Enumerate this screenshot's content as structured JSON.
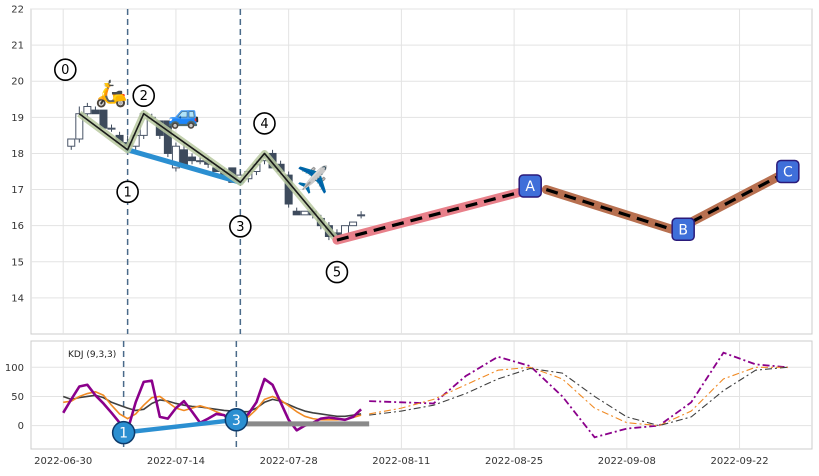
{
  "chart_data": [
    {
      "panel": "price",
      "type": "candlestick",
      "title": "",
      "xlabel": "",
      "ylabel": "",
      "ylim": [
        13,
        22
      ],
      "yticks": [
        14,
        15,
        16,
        17,
        18,
        19,
        20,
        21,
        22
      ],
      "grid": true,
      "candles": [
        {
          "date": "2022-07-01",
          "open": 18.2,
          "high": 18.4,
          "low": 18.1,
          "close": 18.4
        },
        {
          "date": "2022-07-02",
          "open": 18.4,
          "high": 19.3,
          "low": 18.3,
          "close": 19.1
        },
        {
          "date": "2022-07-03",
          "open": 19.1,
          "high": 19.4,
          "low": 19.0,
          "close": 19.3
        },
        {
          "date": "2022-07-04",
          "open": 19.2,
          "high": 19.3,
          "low": 19.1,
          "close": 19.1
        },
        {
          "date": "2022-07-05",
          "open": 19.2,
          "high": 19.2,
          "low": 18.7,
          "close": 18.7
        },
        {
          "date": "2022-07-06",
          "open": 18.7,
          "high": 18.8,
          "low": 18.6,
          "close": 18.7
        },
        {
          "date": "2022-07-07",
          "open": 18.5,
          "high": 18.6,
          "low": 18.3,
          "close": 18.3
        },
        {
          "date": "2022-07-08",
          "open": 18.3,
          "high": 18.5,
          "low": 18.0,
          "close": 18.2
        },
        {
          "date": "2022-07-09",
          "open": 18.2,
          "high": 18.6,
          "low": 18.1,
          "close": 18.5
        },
        {
          "date": "2022-07-10",
          "open": 18.5,
          "high": 19.2,
          "low": 18.4,
          "close": 19.1
        },
        {
          "date": "2022-07-11",
          "open": 19.0,
          "high": 19.1,
          "low": 18.9,
          "close": 19.0
        },
        {
          "date": "2022-07-12",
          "open": 18.9,
          "high": 18.9,
          "low": 18.4,
          "close": 18.5
        },
        {
          "date": "2022-07-13",
          "open": 18.9,
          "high": 18.9,
          "low": 17.9,
          "close": 18.0
        },
        {
          "date": "2022-07-14",
          "open": 17.6,
          "high": 18.3,
          "low": 17.5,
          "close": 18.2
        },
        {
          "date": "2022-07-15",
          "open": 18.1,
          "high": 18.3,
          "low": 17.6,
          "close": 17.7
        },
        {
          "date": "2022-07-16",
          "open": 17.9,
          "high": 18.0,
          "low": 17.7,
          "close": 17.8
        },
        {
          "date": "2022-07-17",
          "open": 17.8,
          "high": 17.9,
          "low": 17.7,
          "close": 17.8
        },
        {
          "date": "2022-07-18",
          "open": 17.8,
          "high": 17.9,
          "low": 17.6,
          "close": 17.7
        },
        {
          "date": "2022-07-19",
          "open": 17.6,
          "high": 17.7,
          "low": 17.5,
          "close": 17.5
        },
        {
          "date": "2022-07-20",
          "open": 17.5,
          "high": 17.6,
          "low": 17.3,
          "close": 17.4
        },
        {
          "date": "2022-07-21",
          "open": 17.6,
          "high": 17.6,
          "low": 17.2,
          "close": 17.2
        },
        {
          "date": "2022-07-22",
          "open": 17.2,
          "high": 17.5,
          "low": 17.1,
          "close": 17.4
        },
        {
          "date": "2022-07-23",
          "open": 17.3,
          "high": 17.5,
          "low": 17.2,
          "close": 17.5
        },
        {
          "date": "2022-07-24",
          "open": 17.5,
          "high": 17.8,
          "low": 17.4,
          "close": 17.7
        },
        {
          "date": "2022-07-25",
          "open": 17.8,
          "high": 18.0,
          "low": 17.7,
          "close": 17.9
        },
        {
          "date": "2022-07-26",
          "open": 18.0,
          "high": 18.1,
          "low": 17.6,
          "close": 17.6
        },
        {
          "date": "2022-07-27",
          "open": 17.7,
          "high": 17.8,
          "low": 17.4,
          "close": 17.5
        },
        {
          "date": "2022-07-28",
          "open": 17.4,
          "high": 17.5,
          "low": 16.5,
          "close": 16.6
        },
        {
          "date": "2022-07-29",
          "open": 16.4,
          "high": 16.5,
          "low": 16.3,
          "close": 16.3
        },
        {
          "date": "2022-07-30",
          "open": 16.3,
          "high": 16.4,
          "low": 16.3,
          "close": 16.4
        },
        {
          "date": "2022-07-31",
          "open": 16.4,
          "high": 16.5,
          "low": 16.2,
          "close": 16.3
        },
        {
          "date": "2022-08-01",
          "open": 16.2,
          "high": 16.3,
          "low": 15.9,
          "close": 16.0
        },
        {
          "date": "2022-08-02",
          "open": 16.0,
          "high": 16.1,
          "low": 15.6,
          "close": 15.7
        },
        {
          "date": "2022-08-03",
          "open": 15.8,
          "high": 15.9,
          "low": 15.6,
          "close": 15.7
        },
        {
          "date": "2022-08-04",
          "open": 15.7,
          "high": 16.0,
          "low": 15.7,
          "close": 16.0
        },
        {
          "date": "2022-08-05",
          "open": 16.0,
          "high": 16.1,
          "low": 16.0,
          "close": 16.1
        },
        {
          "date": "2022-08-06",
          "open": 16.3,
          "high": 16.4,
          "low": 16.2,
          "close": 16.3
        }
      ],
      "wave_points": [
        {
          "label": "0",
          "date": "2022-07-02",
          "value": 19.1
        },
        {
          "label": "1",
          "date": "2022-07-08",
          "value": 18.1
        },
        {
          "label": "2",
          "date": "2022-07-10",
          "value": 19.1
        },
        {
          "label": "3",
          "date": "2022-07-22",
          "value": 17.2
        },
        {
          "label": "4",
          "date": "2022-07-25",
          "value": 18.0
        },
        {
          "label": "5",
          "date": "2022-08-03",
          "value": 15.6
        }
      ],
      "trend_line": {
        "from": {
          "date": "2022-07-08",
          "value": 18.1
        },
        "to": {
          "date": "2022-07-22",
          "value": 17.2
        }
      },
      "projection_points": [
        {
          "label": "A",
          "date": "2022-08-27",
          "value": 17.1
        },
        {
          "label": "B",
          "date": "2022-09-15",
          "value": 15.9
        },
        {
          "label": "C",
          "date": "2022-09-28",
          "value": 17.5
        }
      ],
      "projection_segments": [
        {
          "from": {
            "date": "2022-08-03",
            "value": 15.6
          },
          "to": {
            "date": "2022-08-27",
            "value": 17.0
          },
          "color": "#e8808a"
        },
        {
          "from": {
            "date": "2022-08-29",
            "value": 17.0
          },
          "to": {
            "date": "2022-09-15",
            "value": 15.8
          },
          "color": "#b87050"
        },
        {
          "from": {
            "date": "2022-09-16",
            "value": 16.1
          },
          "to": {
            "date": "2022-09-28",
            "value": 17.5
          },
          "color": "#b87050"
        }
      ],
      "markers": [
        {
          "emoji": "🛵",
          "date": "2022-07-06",
          "value": 19.7
        },
        {
          "emoji": "🚙",
          "date": "2022-07-15",
          "value": 19.1
        },
        {
          "emoji": "✈️",
          "date": "2022-07-31",
          "value": 17.3
        }
      ],
      "vlines": [
        "2022-07-08",
        "2022-07-22"
      ]
    },
    {
      "panel": "indicator",
      "type": "line",
      "label": "KDJ (9,3,3)",
      "ylim": [
        -40,
        145
      ],
      "yticks": [
        0,
        50,
        100
      ],
      "grid": true,
      "x_dates": [
        "2022-06-30",
        "2022-07-01",
        "2022-07-02",
        "2022-07-03",
        "2022-07-04",
        "2022-07-05",
        "2022-07-06",
        "2022-07-07",
        "2022-07-08",
        "2022-07-09",
        "2022-07-10",
        "2022-07-11",
        "2022-07-12",
        "2022-07-13",
        "2022-07-14",
        "2022-07-15",
        "2022-07-16",
        "2022-07-17",
        "2022-07-18",
        "2022-07-19",
        "2022-07-20",
        "2022-07-21",
        "2022-07-22",
        "2022-07-23",
        "2022-07-24",
        "2022-07-25",
        "2022-07-26",
        "2022-07-27",
        "2022-07-28",
        "2022-07-29",
        "2022-07-30",
        "2022-07-31",
        "2022-08-01",
        "2022-08-02",
        "2022-08-03",
        "2022-08-04",
        "2022-08-05",
        "2022-08-06"
      ],
      "series": [
        {
          "color": "#404040",
          "values": [
            50,
            45,
            48,
            50,
            52,
            48,
            40,
            35,
            30,
            26,
            28,
            38,
            44,
            42,
            38,
            35,
            33,
            32,
            30,
            28,
            26,
            25,
            24,
            24,
            30,
            40,
            45,
            42,
            36,
            30,
            25,
            22,
            20,
            18,
            16,
            16,
            18,
            20
          ]
        },
        {
          "color": "#f08a24",
          "values": [
            40,
            42,
            50,
            55,
            58,
            52,
            35,
            20,
            12,
            20,
            35,
            48,
            50,
            40,
            30,
            26,
            30,
            34,
            30,
            24,
            18,
            15,
            14,
            15,
            28,
            45,
            50,
            44,
            34,
            24,
            16,
            12,
            10,
            10,
            10,
            11,
            14,
            18
          ]
        },
        {
          "color": "#8b008b",
          "values": [
            22,
            45,
            67,
            70,
            52,
            38,
            22,
            5,
            -8,
            40,
            75,
            77,
            15,
            12,
            30,
            42,
            24,
            5,
            12,
            20,
            18,
            5,
            6,
            20,
            40,
            80,
            70,
            40,
            10,
            -8,
            0,
            5,
            12,
            14,
            12,
            10,
            15,
            28
          ]
        }
      ],
      "forecast_dates": [
        "2022-08-07",
        "2022-08-11",
        "2022-08-15",
        "2022-08-19",
        "2022-08-23",
        "2022-08-27",
        "2022-08-31",
        "2022-09-04",
        "2022-09-08",
        "2022-09-12",
        "2022-09-16",
        "2022-09-20",
        "2022-09-24",
        "2022-09-28"
      ],
      "forecast": [
        {
          "color": "#8b008b",
          "values": [
            42,
            40,
            38,
            85,
            118,
            102,
            50,
            -20,
            -5,
            0,
            40,
            125,
            105,
            100
          ]
        },
        {
          "color": "#f08a24",
          "values": [
            20,
            30,
            45,
            70,
            95,
            100,
            80,
            30,
            5,
            0,
            25,
            80,
            100,
            100
          ]
        },
        {
          "color": "#404040",
          "values": [
            18,
            25,
            35,
            55,
            80,
            98,
            90,
            50,
            15,
            0,
            15,
            60,
            95,
            100
          ]
        }
      ],
      "wave_markers": [
        {
          "label": "1",
          "date": "2022-07-08",
          "value": -12
        },
        {
          "label": "3",
          "date": "2022-07-22",
          "value": 10
        }
      ],
      "trend_line": {
        "from": {
          "date": "2022-07-08",
          "value": -12
        },
        "to": {
          "date": "2022-07-22",
          "value": 10
        }
      },
      "flat_line": {
        "from": {
          "date": "2022-07-22",
          "value": 3
        },
        "to": {
          "date": "2022-08-07",
          "value": 3
        }
      },
      "vlines": [
        "2022-07-08",
        "2022-07-22"
      ]
    }
  ],
  "x_axis": {
    "ticks": [
      "2022-06-30",
      "2022-07-14",
      "2022-07-28",
      "2022-08-11",
      "2022-08-25",
      "2022-09-08",
      "2022-09-22"
    ],
    "range": [
      "2022-06-26",
      "2022-10-01"
    ]
  }
}
